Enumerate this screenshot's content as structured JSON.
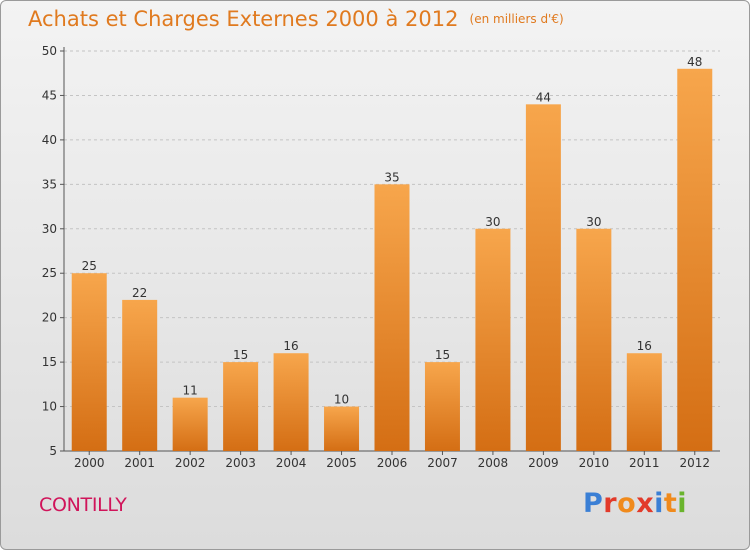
{
  "title": "Achats et Charges Externes 2000 à 2012",
  "unit_note": "(en milliers d'€)",
  "commune": "CONTILLY",
  "logo": {
    "text": "Proxiti",
    "letter_colors": [
      "#3a7fd5",
      "#e23a2a",
      "#f08a1c",
      "#e23a2a",
      "#3a7fd5",
      "#f08a1c",
      "#6ab42d"
    ]
  },
  "colors": {
    "bar_top": "#f7a64c",
    "bar_bottom": "#d46e14",
    "accent_title": "#e07a1f",
    "commune": "#d0145a"
  },
  "chart_data": {
    "type": "bar",
    "title": "Achats et Charges Externes 2000 à 2012",
    "categories": [
      "2000",
      "2001",
      "2002",
      "2003",
      "2004",
      "2005",
      "2006",
      "2007",
      "2008",
      "2009",
      "2010",
      "2011",
      "2012"
    ],
    "values": [
      25,
      22,
      11,
      15,
      16,
      10,
      35,
      15,
      30,
      44,
      30,
      16,
      48
    ],
    "ylim": [
      5,
      50
    ],
    "yticks": [
      5,
      10,
      15,
      20,
      25,
      30,
      35,
      40,
      45,
      50
    ],
    "grid": true,
    "data_labels": true
  }
}
